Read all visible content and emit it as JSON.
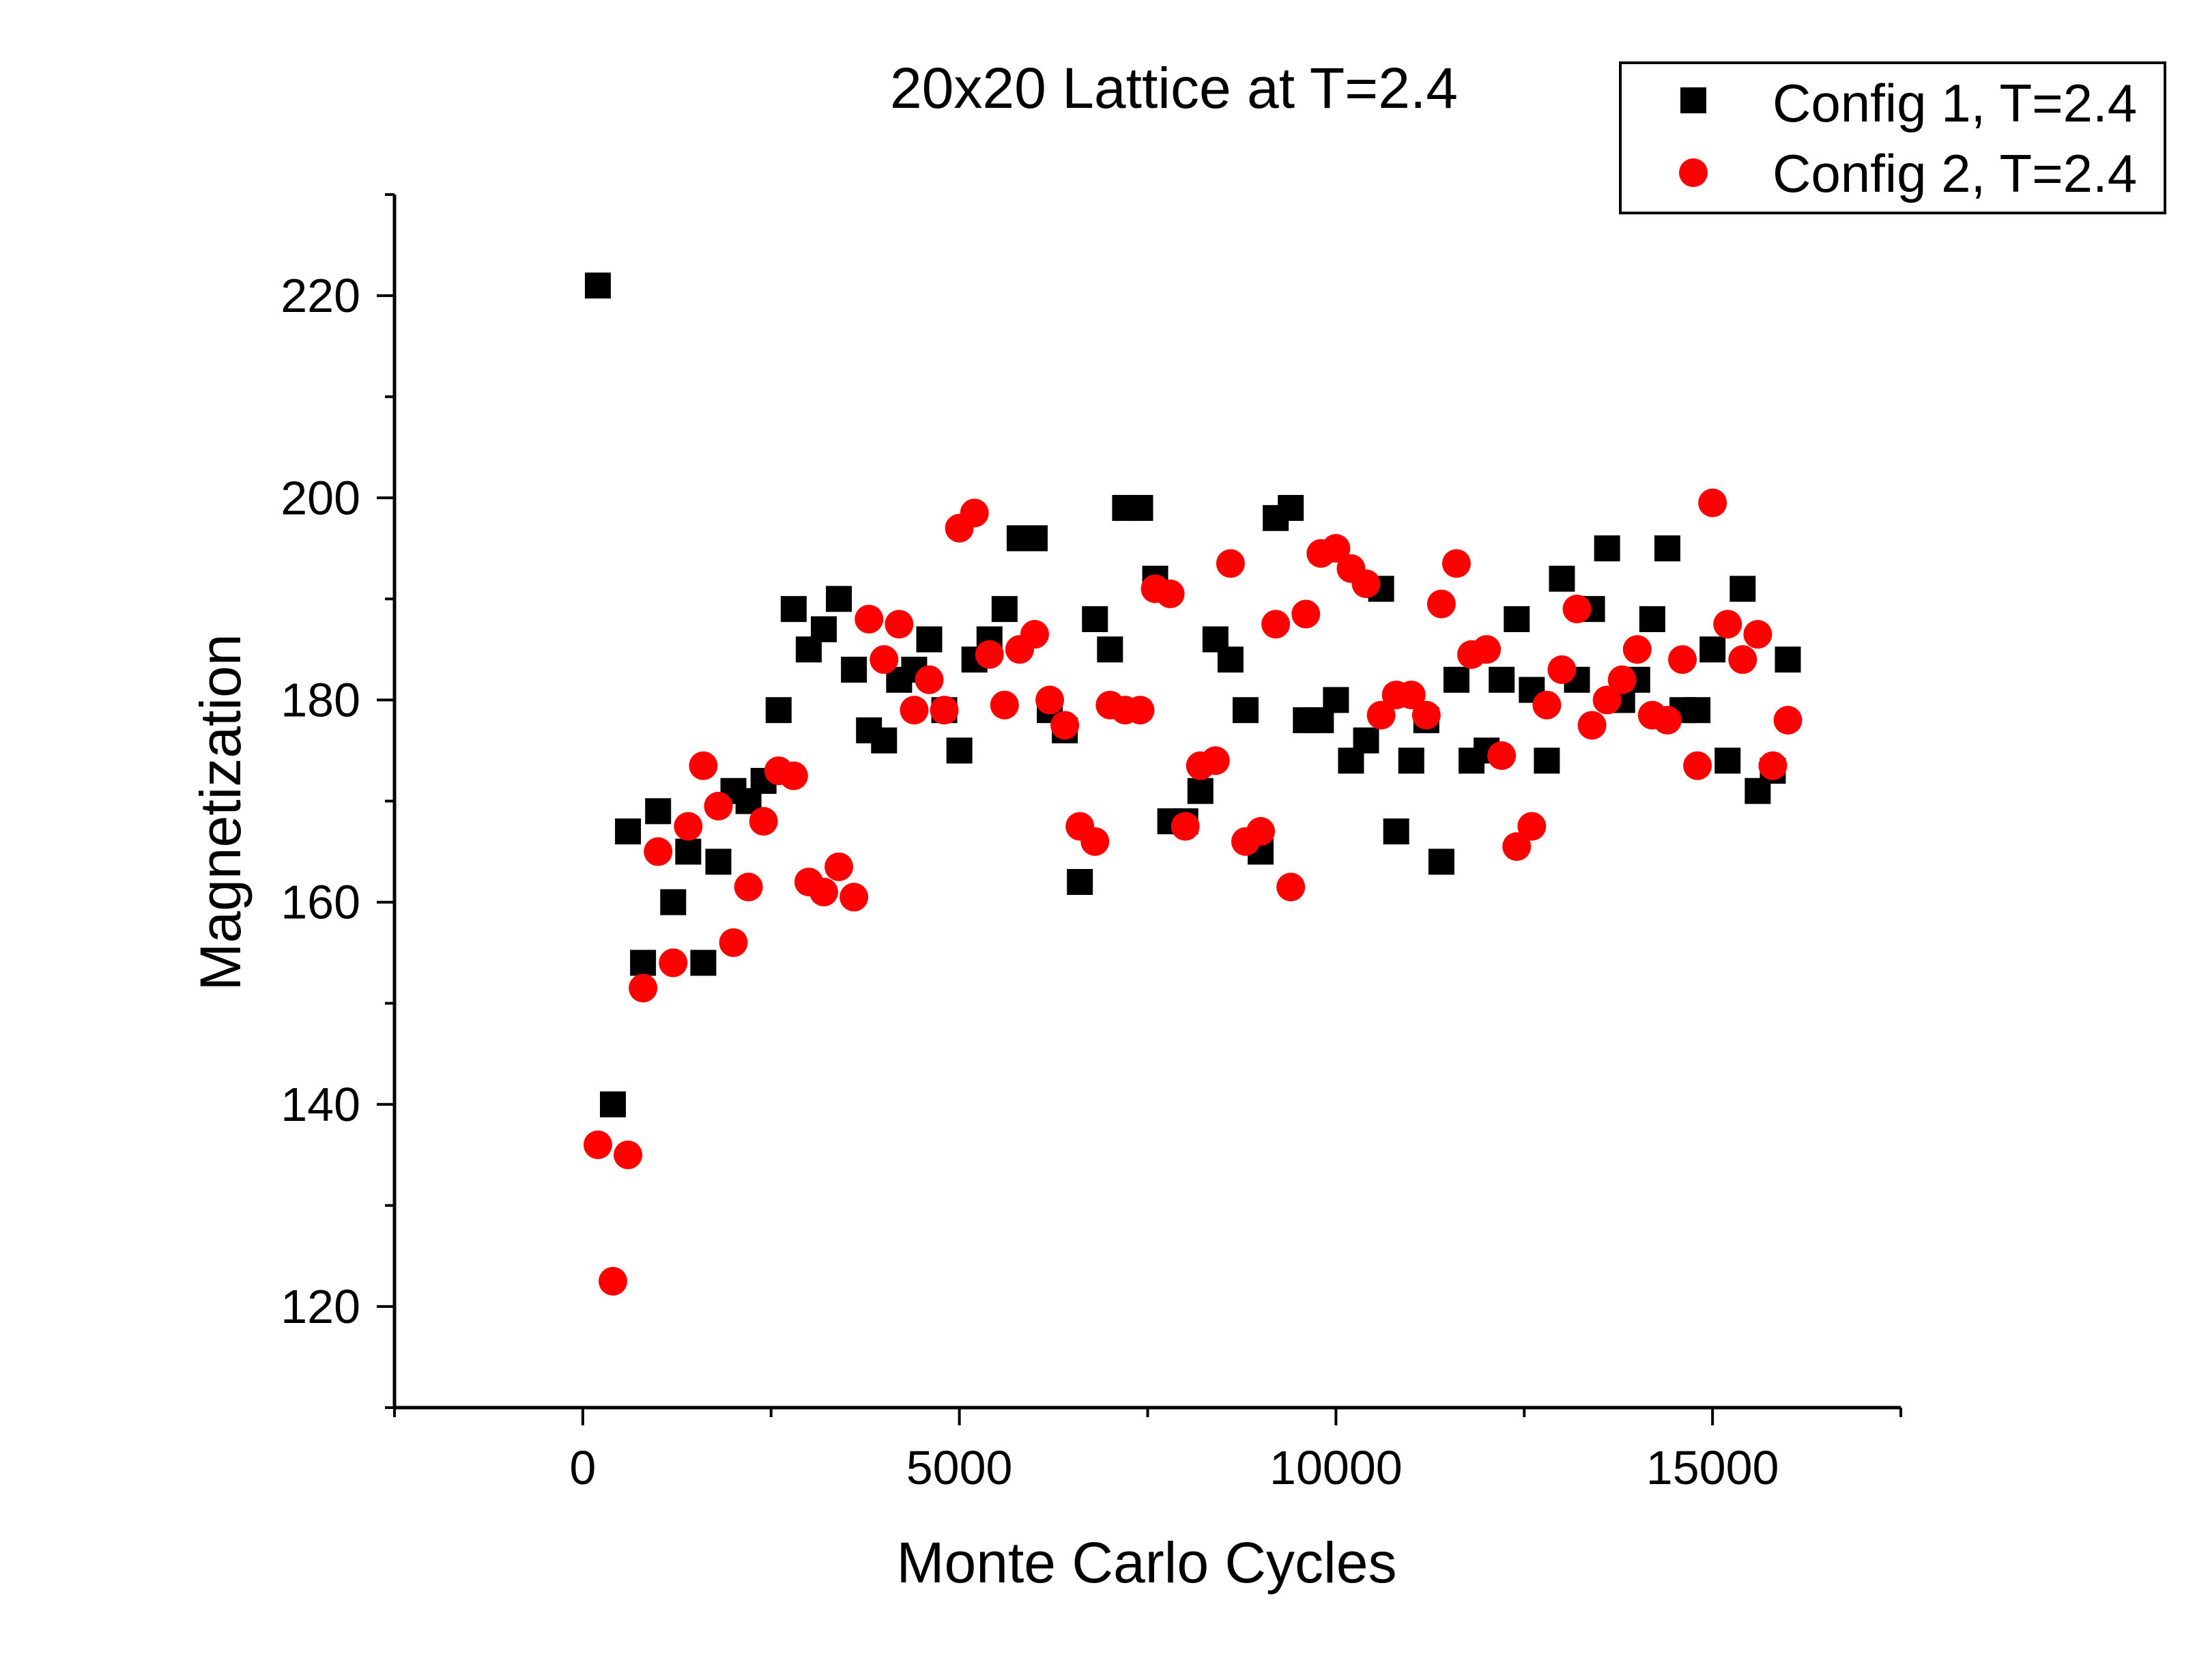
{
  "chart_data": {
    "type": "scatter",
    "title": "20x20 Lattice at T=2.4",
    "xlabel": "Monte Carlo Cycles",
    "ylabel": "Magnetization",
    "xlim": [
      -2500,
      17500
    ],
    "ylim": [
      110,
      230
    ],
    "x_ticks": [
      0,
      5000,
      10000,
      15000
    ],
    "y_ticks": [
      120,
      140,
      160,
      180,
      200,
      220
    ],
    "x_tick_labels": [
      "0",
      "5000",
      "10000",
      "15000"
    ],
    "y_tick_labels": [
      "120",
      "140",
      "160",
      "180",
      "200",
      "220"
    ],
    "grid": false,
    "legend": "top-right",
    "series": [
      {
        "name": "Config 1, T=2.4",
        "marker": "square",
        "color": "#000000",
        "x": [
          200,
          400,
          600,
          800,
          1000,
          1200,
          1400,
          1600,
          1800,
          2000,
          2200,
          2400,
          2600,
          2800,
          3000,
          3200,
          3400,
          3600,
          3800,
          4000,
          4200,
          4400,
          4600,
          4800,
          5000,
          5200,
          5400,
          5600,
          5800,
          6000,
          6200,
          6400,
          6600,
          6800,
          7000,
          7200,
          7400,
          7600,
          7800,
          8000,
          8200,
          8400,
          8600,
          8800,
          9000,
          9200,
          9400,
          9600,
          9800,
          10000,
          10200,
          10400,
          10600,
          10800,
          11000,
          11200,
          11400,
          11600,
          11800,
          12000,
          12200,
          12400,
          12600,
          12800,
          13000,
          13200,
          13400,
          13600,
          13800,
          14000,
          14200,
          14400,
          14600,
          14800,
          15000,
          15200,
          15400,
          15600,
          15800,
          16000
        ],
        "y": [
          221,
          140,
          167,
          154,
          169,
          160,
          165,
          154,
          164,
          171,
          170,
          172,
          179,
          189,
          185,
          187,
          190,
          183,
          177,
          176,
          182,
          183,
          186,
          179,
          175,
          184,
          186,
          189,
          196,
          196,
          179,
          177,
          162,
          188,
          185,
          199,
          199,
          192,
          168,
          168,
          171,
          186,
          184,
          179,
          165,
          198,
          199,
          178,
          178,
          180,
          174,
          176,
          191,
          167,
          174,
          178,
          164,
          182,
          174,
          175,
          182,
          188,
          181,
          174,
          192,
          182,
          189,
          195,
          180,
          182,
          188,
          195,
          179,
          179,
          185,
          174,
          191,
          171,
          173,
          184
        ]
      },
      {
        "name": "Config 2, T=2.4",
        "marker": "circle",
        "color": "#ff0000",
        "x": [
          200,
          400,
          600,
          800,
          1000,
          1200,
          1400,
          1600,
          1800,
          2000,
          2200,
          2400,
          2600,
          2800,
          3000,
          3200,
          3400,
          3600,
          3800,
          4000,
          4200,
          4400,
          4600,
          4800,
          5000,
          5200,
          5400,
          5600,
          5800,
          6000,
          6200,
          6400,
          6600,
          6800,
          7000,
          7200,
          7400,
          7600,
          7800,
          8000,
          8200,
          8400,
          8600,
          8800,
          9000,
          9200,
          9400,
          9600,
          9800,
          10000,
          10200,
          10400,
          10600,
          10800,
          11000,
          11200,
          11400,
          11600,
          11800,
          12000,
          12200,
          12400,
          12600,
          12800,
          13000,
          13200,
          13400,
          13600,
          13800,
          14000,
          14200,
          14400,
          14600,
          14800,
          15000,
          15200,
          15400,
          15600,
          15800,
          16000
        ],
        "y": [
          136,
          122.5,
          135,
          151.5,
          165,
          154,
          167.5,
          173.5,
          169.5,
          156,
          161.5,
          168,
          173,
          172.5,
          162,
          161,
          163.5,
          160.5,
          188,
          184,
          187.5,
          179,
          182,
          179,
          197,
          198.5,
          184.5,
          179.5,
          185,
          186.5,
          180,
          177.5,
          167.5,
          166,
          179.5,
          179,
          179,
          191,
          190.5,
          167.5,
          173.5,
          174,
          193.5,
          166,
          167,
          187.5,
          161.5,
          188.5,
          194.5,
          195,
          193,
          191.5,
          178.5,
          180.5,
          180.5,
          178.5,
          189.5,
          193.5,
          184.5,
          185,
          174.5,
          165.5,
          167.5,
          179.5,
          183,
          189,
          177.5,
          180,
          182,
          185,
          178.5,
          178,
          184,
          173.5,
          199.5,
          187.5,
          184,
          186.5,
          173.5,
          178
        ]
      }
    ]
  }
}
